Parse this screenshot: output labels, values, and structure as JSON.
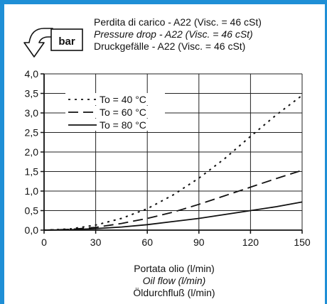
{
  "header": {
    "unit_label": "bar",
    "title_lines": [
      "Perdita di carico - A22 (Visc. = 46 cSt)",
      "Pressure drop  - A22 (Visc. = 46 cSt)",
      "Druckgefälle - A22 (Visc. = 46 cSt)"
    ]
  },
  "chart_data": {
    "type": "line",
    "title": "Perdita di carico - A22 (Visc. = 46 cSt)",
    "ylabel": "bar",
    "xlabel_lines": [
      "Portata olio (l/min)",
      "Oil flow (l/min)",
      "Öldurchfluß  (l/min)"
    ],
    "xlim": [
      0,
      150
    ],
    "ylim": [
      0,
      4
    ],
    "x_ticks": [
      "0",
      "30",
      "60",
      "90",
      "120",
      "150"
    ],
    "y_ticks": [
      "0,0",
      "0,5",
      "1,0",
      "1,5",
      "2,0",
      "2,5",
      "3,0",
      "3,5",
      "4,0"
    ],
    "grid": true,
    "legend_position": "top-left",
    "series": [
      {
        "name": "To = 40 °C",
        "dash": "dotted",
        "points": [
          [
            0,
            0
          ],
          [
            15,
            0.03
          ],
          [
            30,
            0.13
          ],
          [
            45,
            0.3
          ],
          [
            60,
            0.55
          ],
          [
            75,
            0.9
          ],
          [
            90,
            1.33
          ],
          [
            105,
            1.83
          ],
          [
            120,
            2.4
          ],
          [
            135,
            2.95
          ],
          [
            150,
            3.45
          ]
        ]
      },
      {
        "name": "To = 60 °C",
        "dash": "dashed",
        "points": [
          [
            0,
            0
          ],
          [
            15,
            0.02
          ],
          [
            30,
            0.07
          ],
          [
            45,
            0.17
          ],
          [
            60,
            0.3
          ],
          [
            75,
            0.46
          ],
          [
            90,
            0.66
          ],
          [
            105,
            0.88
          ],
          [
            120,
            1.1
          ],
          [
            135,
            1.32
          ],
          [
            150,
            1.53
          ]
        ]
      },
      {
        "name": "To = 80 °C",
        "dash": "solid",
        "points": [
          [
            0,
            0
          ],
          [
            15,
            0.01
          ],
          [
            30,
            0.04
          ],
          [
            45,
            0.08
          ],
          [
            60,
            0.14
          ],
          [
            75,
            0.22
          ],
          [
            90,
            0.3
          ],
          [
            105,
            0.4
          ],
          [
            120,
            0.5
          ],
          [
            135,
            0.6
          ],
          [
            150,
            0.72
          ]
        ]
      }
    ]
  }
}
